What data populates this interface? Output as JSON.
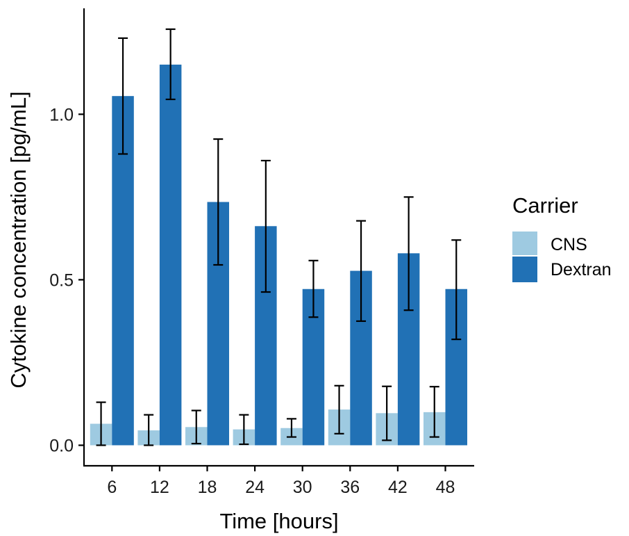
{
  "chart_data": {
    "type": "bar",
    "categories": [
      "6",
      "12",
      "18",
      "24",
      "30",
      "36",
      "42",
      "48"
    ],
    "series": [
      {
        "name": "CNS",
        "color": "#9ecae1",
        "values": [
          0.065,
          0.045,
          0.055,
          0.048,
          0.052,
          0.108,
          0.097,
          0.1
        ],
        "error_low": [
          0.0,
          0.0,
          0.005,
          0.003,
          0.025,
          0.035,
          0.015,
          0.025
        ],
        "error_high": [
          0.13,
          0.092,
          0.105,
          0.092,
          0.08,
          0.18,
          0.178,
          0.177
        ]
      },
      {
        "name": "Dextran",
        "color": "#2171b5",
        "values": [
          1.055,
          1.15,
          0.735,
          0.662,
          0.472,
          0.527,
          0.58,
          0.472
        ],
        "error_low": [
          0.88,
          1.045,
          0.545,
          0.463,
          0.387,
          0.375,
          0.408,
          0.32
        ],
        "error_high": [
          1.23,
          1.257,
          0.925,
          0.86,
          0.558,
          0.678,
          0.75,
          0.62
        ]
      }
    ],
    "xlabel": "Time [hours]",
    "ylabel": "Cytokine concentration [pg/mL]",
    "yticks": [
      0.0,
      0.5,
      1.0
    ],
    "ytick_labels": [
      "0.0",
      "0.5",
      "1.0"
    ],
    "ylim": [
      -0.062,
      1.32
    ],
    "legend_title": "Carrier",
    "legend_position": "right",
    "grid": false
  }
}
